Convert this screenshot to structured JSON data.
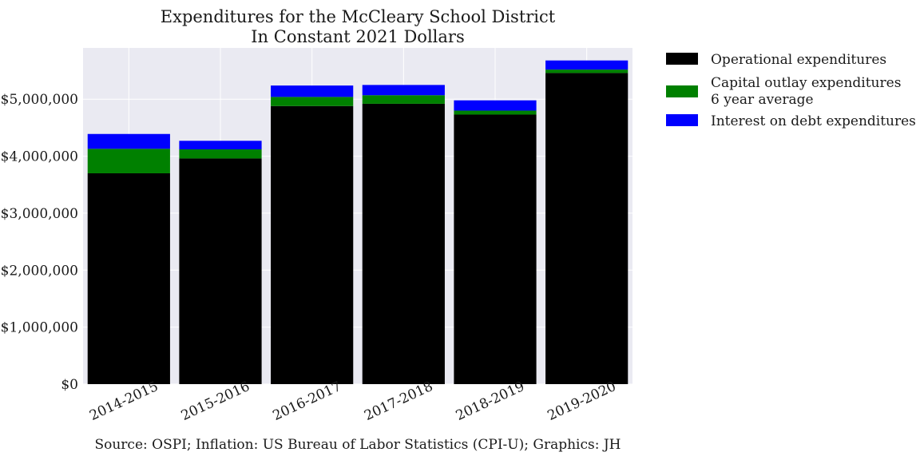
{
  "chart_data": {
    "type": "bar",
    "stacked": true,
    "title": [
      "Expenditures for the McCleary School District",
      "In Constant 2021 Dollars"
    ],
    "categories": [
      "2014-2015",
      "2015-2016",
      "2016-2017",
      "2017-2018",
      "2018-2019",
      "2019-2020"
    ],
    "series": [
      {
        "name": "Operational expenditures",
        "color": "#000000",
        "values": [
          3700000,
          3960000,
          4880000,
          4920000,
          4730000,
          5460000
        ]
      },
      {
        "name": "Capital outlay expenditures\n6 year average",
        "color": "#008000",
        "values": [
          430000,
          160000,
          160000,
          150000,
          70000,
          60000
        ]
      },
      {
        "name": "Interest on debt expenditures",
        "color": "#0000ff",
        "values": [
          260000,
          150000,
          200000,
          180000,
          180000,
          160000
        ]
      }
    ],
    "y_ticks": [
      "$0",
      "$1,000,000",
      "$2,000,000",
      "$3,000,000",
      "$4,000,000",
      "$5,000,000"
    ],
    "ylim": [
      0,
      5900000
    ],
    "grid": true,
    "legend_position": "outside-right-top",
    "source_note": "Source: OSPI; Inflation: US Bureau of Labor Statistics (CPI-U); Graphics: JH"
  }
}
